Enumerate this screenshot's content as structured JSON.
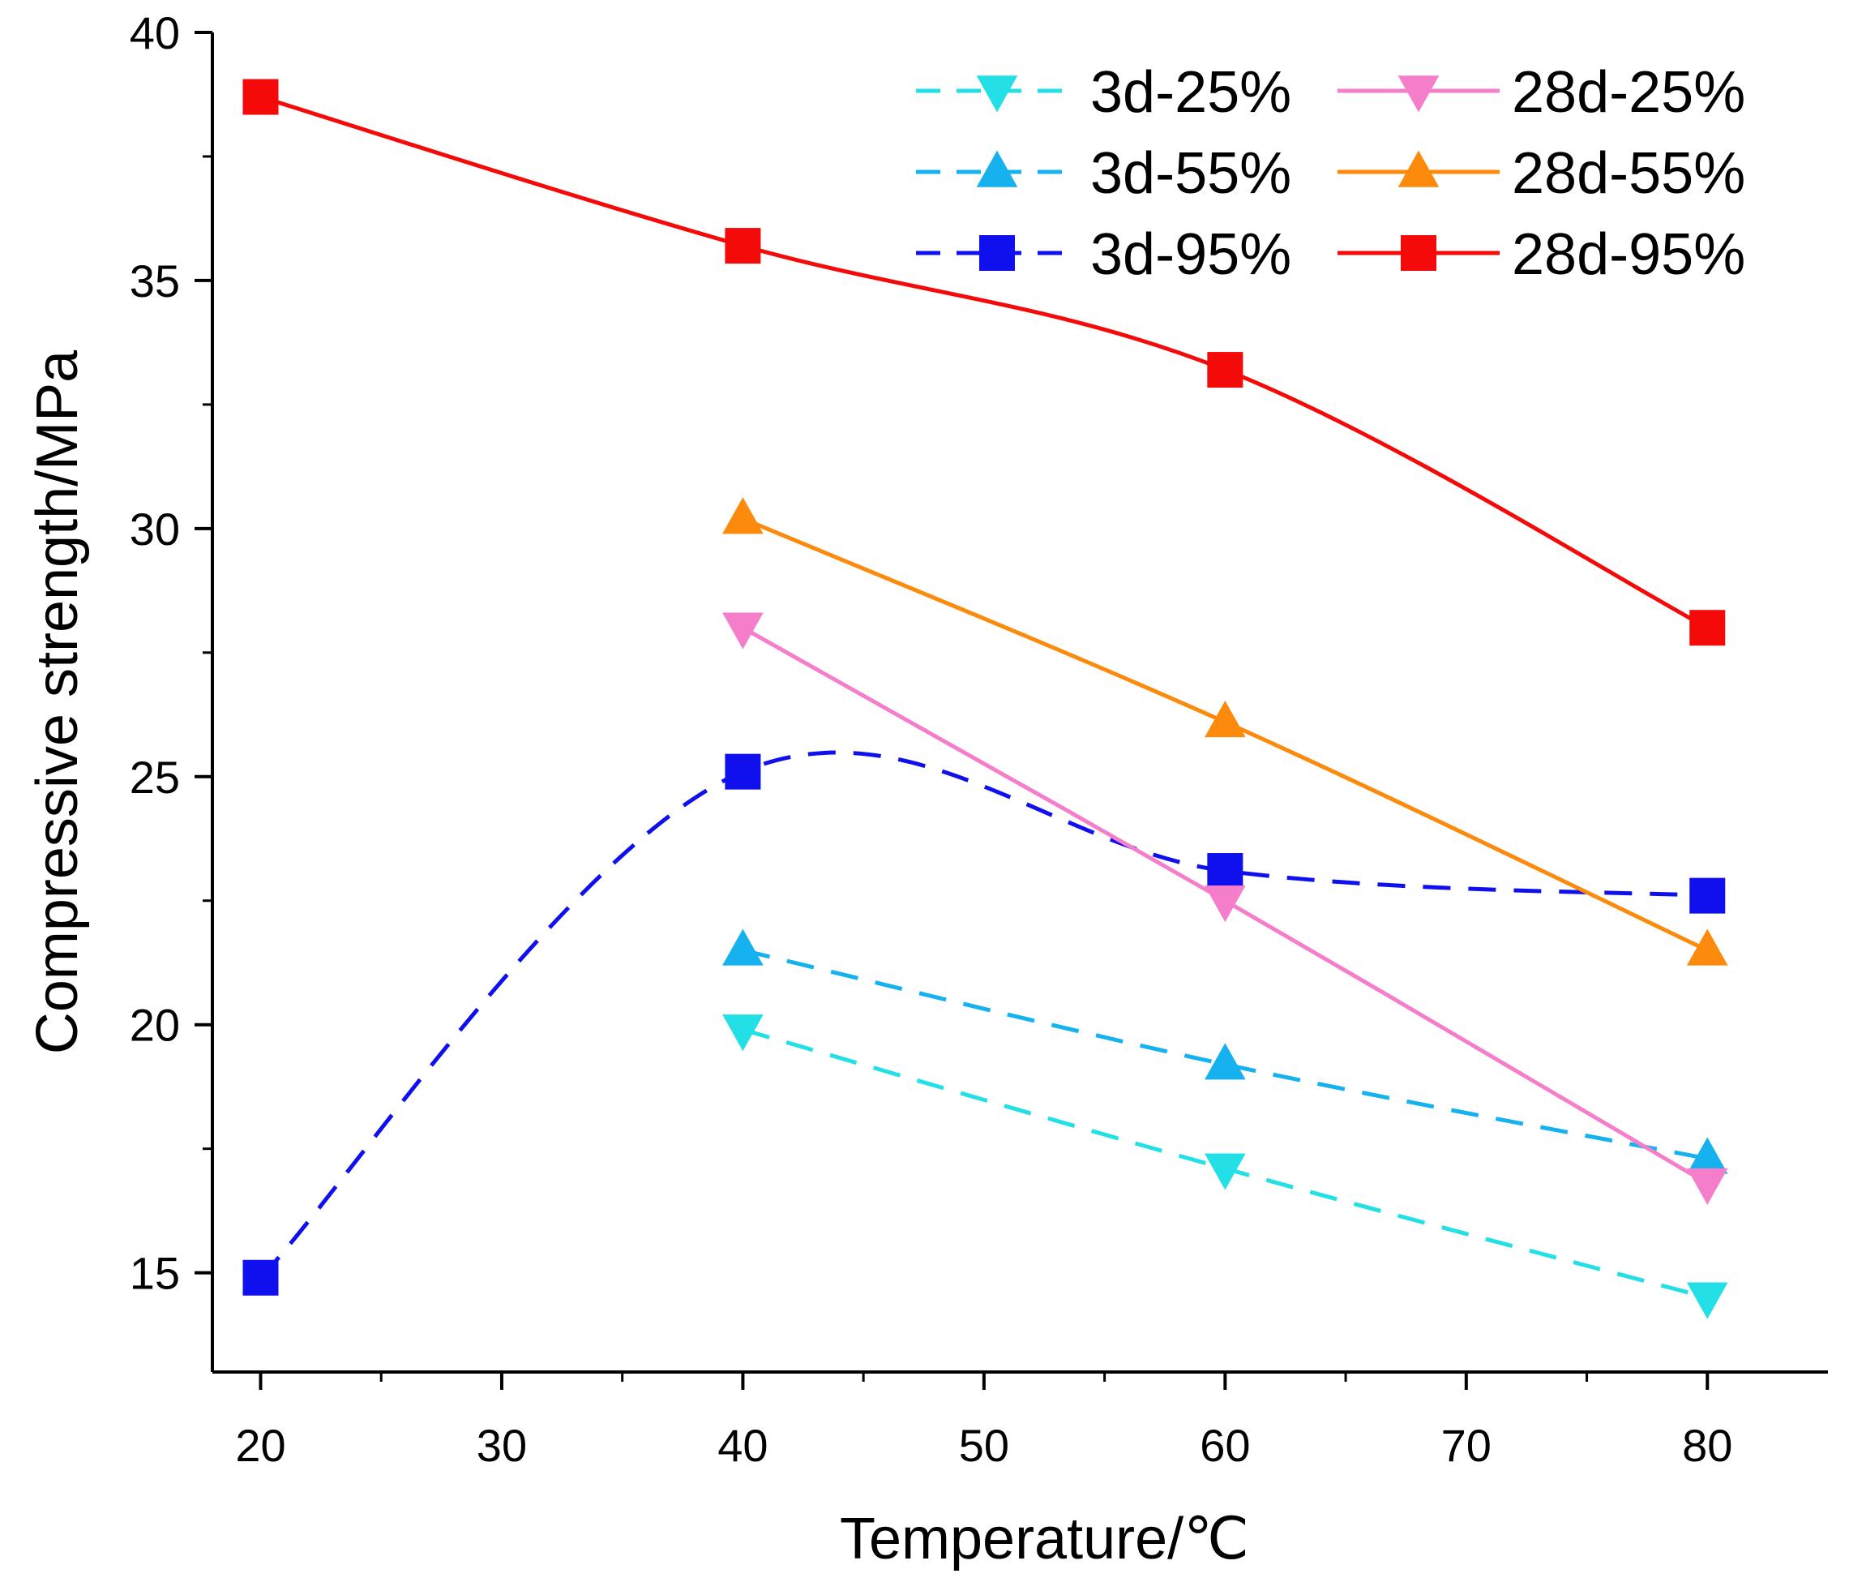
{
  "chart_data": {
    "type": "line",
    "title": "",
    "xlabel": "Temperature/℃",
    "ylabel": "Compressive strength/MPa",
    "xlim": [
      18,
      85
    ],
    "ylim": [
      13,
      40
    ],
    "xticks": [
      20,
      30,
      40,
      50,
      60,
      70,
      80
    ],
    "yticks": [
      15,
      20,
      25,
      30,
      35,
      40
    ],
    "grid": false,
    "legend_position": "top-right",
    "series": [
      {
        "name": "3d-25%",
        "x": [
          40,
          60,
          80
        ],
        "values": [
          19.9,
          17.1,
          14.5
        ],
        "color": "#22e0e6",
        "dash": "dashed",
        "marker": "triangle-down"
      },
      {
        "name": "3d-55%",
        "x": [
          40,
          60,
          80
        ],
        "values": [
          21.5,
          19.2,
          17.3
        ],
        "color": "#16b2ef",
        "dash": "dashed",
        "marker": "triangle-up"
      },
      {
        "name": "3d-95%",
        "x": [
          20,
          40,
          60,
          80
        ],
        "values": [
          14.9,
          25.1,
          23.1,
          22.6
        ],
        "color": "#1010ee",
        "dash": "dashed",
        "marker": "square"
      },
      {
        "name": "28d-25%",
        "x": [
          40,
          60,
          80
        ],
        "values": [
          28.0,
          22.5,
          16.8
        ],
        "color": "#f57ecb",
        "dash": "solid",
        "marker": "triangle-down"
      },
      {
        "name": "28d-55%",
        "x": [
          40,
          60,
          80
        ],
        "values": [
          30.2,
          26.1,
          21.5
        ],
        "color": "#fb8a0d",
        "dash": "solid",
        "marker": "triangle-up"
      },
      {
        "name": "28d-95%",
        "x": [
          20,
          40,
          60,
          80
        ],
        "values": [
          38.7,
          35.7,
          33.2,
          28.0
        ],
        "color": "#f50a0a",
        "dash": "solid",
        "marker": "square"
      }
    ]
  }
}
